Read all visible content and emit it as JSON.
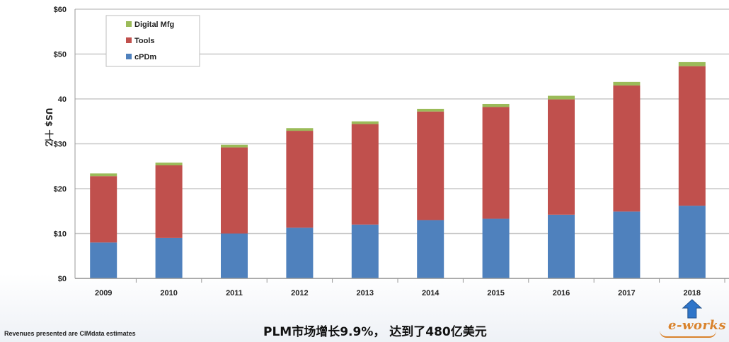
{
  "chart_data": {
    "type": "bar",
    "stacked": true,
    "categories": [
      "2009",
      "2010",
      "2011",
      "2012",
      "2013",
      "2014",
      "2015",
      "2016",
      "2017",
      "2018"
    ],
    "series": [
      {
        "name": "cPDm",
        "color": "#4f81bd",
        "values": [
          8,
          9,
          10,
          11.3,
          12,
          13,
          13.3,
          14.2,
          14.9,
          16.2
        ]
      },
      {
        "name": "Tools",
        "color": "#c0504d",
        "values": [
          14.8,
          16.2,
          19.2,
          21.6,
          22.4,
          24.2,
          24.9,
          25.7,
          28.1,
          31.1
        ]
      },
      {
        "name": "Digital Mfg",
        "color": "#9bbb59",
        "values": [
          0.6,
          0.6,
          0.6,
          0.6,
          0.6,
          0.6,
          0.7,
          0.8,
          0.8,
          0.9
        ]
      }
    ],
    "yticks": [
      "$0",
      "$10",
      "$20",
      "$30",
      "40",
      "$50",
      "$60"
    ],
    "ylim": [
      0,
      60
    ],
    "ylabel": "US$ 十亿",
    "legend_position": "top-left",
    "grid": true,
    "highlight_category": "2018"
  },
  "caption": "PLM市场增长9.9%， 达到了480亿美元",
  "footnote": "Revenues presented are CIMdata estimates",
  "logo_text": "e-works"
}
